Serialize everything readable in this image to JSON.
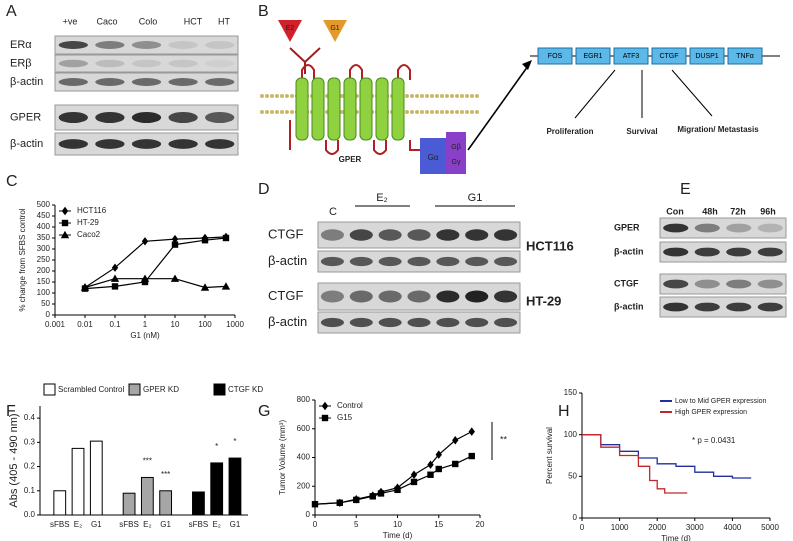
{
  "panel_labels": [
    "A",
    "B",
    "C",
    "D",
    "E",
    "F",
    "G",
    "H"
  ],
  "blot_a": {
    "lanes": [
      "+ve",
      "Caco",
      "Colo",
      "HCT",
      "HT"
    ],
    "rows": [
      "ERα",
      "ERβ",
      "β-actin",
      "GPER",
      "β-actin"
    ]
  },
  "diagram_b": {
    "ligands": [
      "E2",
      "G1"
    ],
    "receptor": "GPER",
    "g_proteins": [
      "Gα",
      "Gβ",
      "Gγ"
    ],
    "genes": [
      "FOS",
      "EGR1",
      "ATF3",
      "CTGF",
      "DUSP1",
      "TNFα"
    ],
    "outcomes": [
      "Proliferation",
      "Survival",
      "Migration/ Metastasis"
    ]
  },
  "blot_d": {
    "control": "C",
    "treatments": [
      "E₂",
      "G1"
    ],
    "rows": [
      "CTGF",
      "β-actin",
      "CTGF",
      "β-actin"
    ],
    "cell_lines": [
      "HCT116",
      "HT-29"
    ]
  },
  "blot_e": {
    "lanes": [
      "Con",
      "48h",
      "72h",
      "96h"
    ],
    "rows": [
      "GPER",
      "β-actin",
      "CTGF",
      "β-actin"
    ]
  },
  "chart_data": [
    {
      "type": "line",
      "xscale": "log",
      "y_label": "% change from SFBS control",
      "x_label": "G1 (nM)",
      "x": [
        0.01,
        0.1,
        1,
        10,
        100,
        500
      ],
      "series": [
        {
          "name": "HCT116",
          "marker": "diamond",
          "color": "#000000",
          "values": [
            125,
            215,
            335,
            345,
            350,
            355
          ]
        },
        {
          "name": "HT-29",
          "marker": "square",
          "color": "#000000",
          "values": [
            120,
            130,
            150,
            320,
            340,
            350
          ]
        },
        {
          "name": "Caco2",
          "marker": "triangle",
          "color": "#000000",
          "values": [
            125,
            165,
            165,
            165,
            125,
            130
          ]
        }
      ],
      "xlim": [
        0.001,
        1000
      ],
      "xticks": [
        0.001,
        0.01,
        0.1,
        1,
        10,
        100,
        1000
      ],
      "ylim": [
        0,
        500
      ],
      "yticks": [
        0,
        50,
        100,
        150,
        200,
        250,
        300,
        350,
        400,
        450,
        500
      ]
    },
    {
      "type": "bar",
      "y_label": "Abs (405 - 490 nm)",
      "categories": [
        "sFBS",
        "E₂",
        "G1"
      ],
      "series": [
        {
          "name": "Scrambled Control",
          "color": "#ffffff",
          "values": [
            0.1,
            0.275,
            0.305
          ]
        },
        {
          "name": "GPER KD",
          "color": "#a6a6a6",
          "values": [
            0.09,
            0.155,
            0.1
          ]
        },
        {
          "name": "CTGF KD",
          "color": "#000000",
          "values": [
            0.095,
            0.215,
            0.235
          ]
        }
      ],
      "annotations": [
        {
          "series": 1,
          "index": 1,
          "text": "***"
        },
        {
          "series": 1,
          "index": 2,
          "text": "***"
        },
        {
          "series": 2,
          "index": 1,
          "text": "*"
        },
        {
          "series": 2,
          "index": 2,
          "text": "*"
        }
      ],
      "ylim": [
        0,
        0.45
      ],
      "yticks": [
        {
          "value": 0,
          "label": "0.0"
        },
        0.1,
        0.2,
        0.3,
        0.4
      ]
    },
    {
      "type": "line",
      "y_label": "Tumor Volume (mm³)",
      "x_label": "Time (d)",
      "x": [
        0,
        3,
        5,
        7,
        8,
        10,
        12,
        14,
        15,
        17,
        19
      ],
      "series": [
        {
          "name": "Control",
          "marker": "diamond",
          "color": "#000000",
          "values": [
            75,
            85,
            110,
            135,
            160,
            190,
            280,
            350,
            420,
            520,
            580
          ]
        },
        {
          "name": "G15",
          "marker": "square",
          "color": "#000000",
          "values": [
            75,
            85,
            105,
            130,
            150,
            175,
            230,
            280,
            320,
            355,
            410
          ]
        }
      ],
      "annotations": [
        {
          "text": "**"
        }
      ],
      "xlim": [
        0,
        20
      ],
      "xticks": [
        0,
        5,
        10,
        15,
        20
      ],
      "ylim": [
        0,
        800
      ],
      "yticks": [
        0,
        200,
        400,
        600,
        800
      ]
    },
    {
      "type": "line",
      "steps": true,
      "y_label": "Percent survival",
      "x_label": "Time (d)",
      "series": [
        {
          "name": "Low to Mid GPER expression",
          "color": "#1f2fa0",
          "x": [
            0,
            500,
            1000,
            1500,
            2000,
            2500,
            3000,
            3500,
            4000,
            4500
          ],
          "values": [
            100,
            88,
            80,
            72,
            65,
            62,
            55,
            50,
            48,
            48
          ]
        },
        {
          "name": "High GPER expression",
          "color": "#c0282d",
          "x": [
            0,
            500,
            1000,
            1500,
            1800,
            2000,
            2200,
            2800
          ],
          "values": [
            100,
            85,
            75,
            62,
            45,
            35,
            30,
            30
          ]
        }
      ],
      "annotations": [
        {
          "text": "* p = 0.0431"
        }
      ],
      "xlim": [
        0,
        5000
      ],
      "xticks": [
        0,
        1000,
        2000,
        3000,
        4000,
        5000
      ],
      "ylim": [
        0,
        150
      ],
      "yticks": [
        0,
        50,
        100,
        150
      ]
    }
  ]
}
